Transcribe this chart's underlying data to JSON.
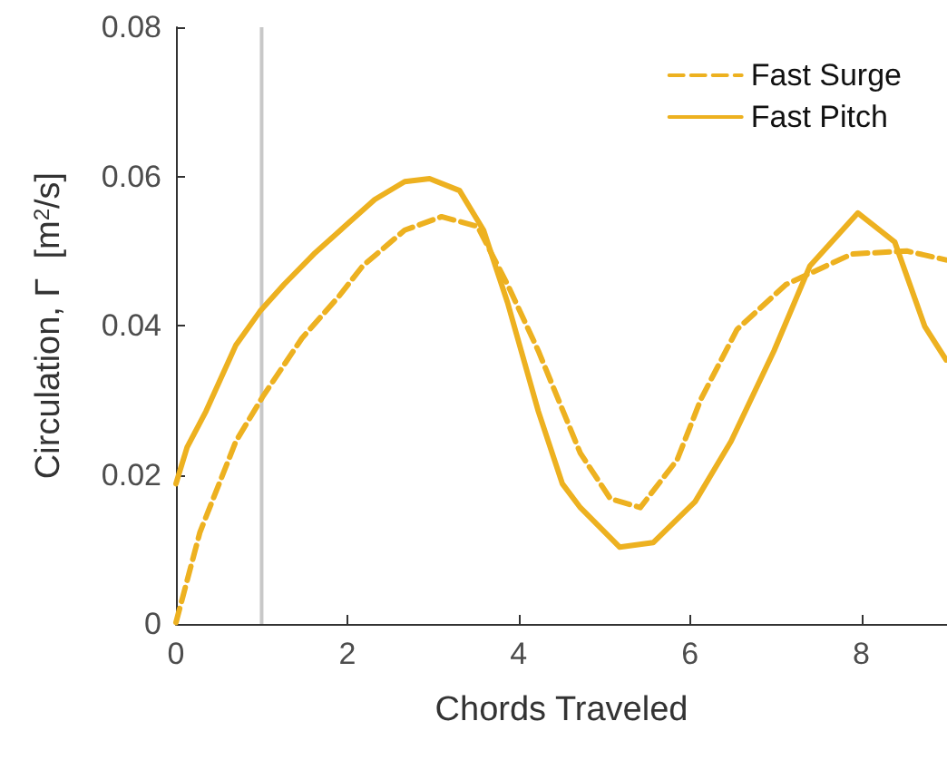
{
  "chart_data": {
    "type": "line",
    "xlabel": "Chords Traveled",
    "ylabel": "Circulation, Γ  [m$^{2}$/s]",
    "xlim": [
      0,
      9
    ],
    "xticks": [
      0,
      2,
      4,
      6,
      8
    ],
    "ylim": [
      0,
      0.08
    ],
    "yticks": [
      0,
      0.02,
      0.04,
      0.06,
      0.08
    ],
    "grid": false,
    "legend": "top right",
    "marker": "none",
    "ref_lines": [
      {
        "axis": "x",
        "value": 1,
        "label": null,
        "color": "#c8c8c8"
      }
    ],
    "series": [
      {
        "name": "Fast Surge",
        "color": "#edb120",
        "line_style": "dashed",
        "x": [
          0,
          0.28,
          0.7,
          1.02,
          1.47,
          1.9,
          2.18,
          2.67,
          3.1,
          3.52,
          3.87,
          4.23,
          4.72,
          5.07,
          5.42,
          5.85,
          6.13,
          6.55,
          7.12,
          7.89,
          8.53,
          8.99
        ],
        "values": [
          0.0002,
          0.0123,
          0.0245,
          0.0306,
          0.0383,
          0.0439,
          0.048,
          0.0528,
          0.0546,
          0.0533,
          0.0455,
          0.0366,
          0.0229,
          0.0168,
          0.0156,
          0.022,
          0.0302,
          0.0395,
          0.0455,
          0.0496,
          0.05,
          0.0488
        ]
      },
      {
        "name": "Fast Pitch",
        "color": "#edb120",
        "line_style": "solid",
        "x": [
          0,
          0.13,
          0.35,
          0.7,
          0.98,
          1.26,
          1.61,
          1.97,
          2.32,
          2.67,
          2.96,
          3.31,
          3.59,
          3.87,
          4.23,
          4.51,
          4.72,
          5.18,
          5.57,
          6.06,
          6.48,
          6.98,
          7.4,
          7.96,
          8.39,
          8.74,
          8.99
        ],
        "values": [
          0.0188,
          0.0237,
          0.0285,
          0.0374,
          0.0419,
          0.0455,
          0.0496,
          0.0533,
          0.0569,
          0.0593,
          0.0597,
          0.0581,
          0.0528,
          0.0431,
          0.0285,
          0.0188,
          0.0156,
          0.0103,
          0.0109,
          0.0164,
          0.0245,
          0.0366,
          0.048,
          0.0551,
          0.0512,
          0.0399,
          0.0354
        ]
      }
    ]
  }
}
